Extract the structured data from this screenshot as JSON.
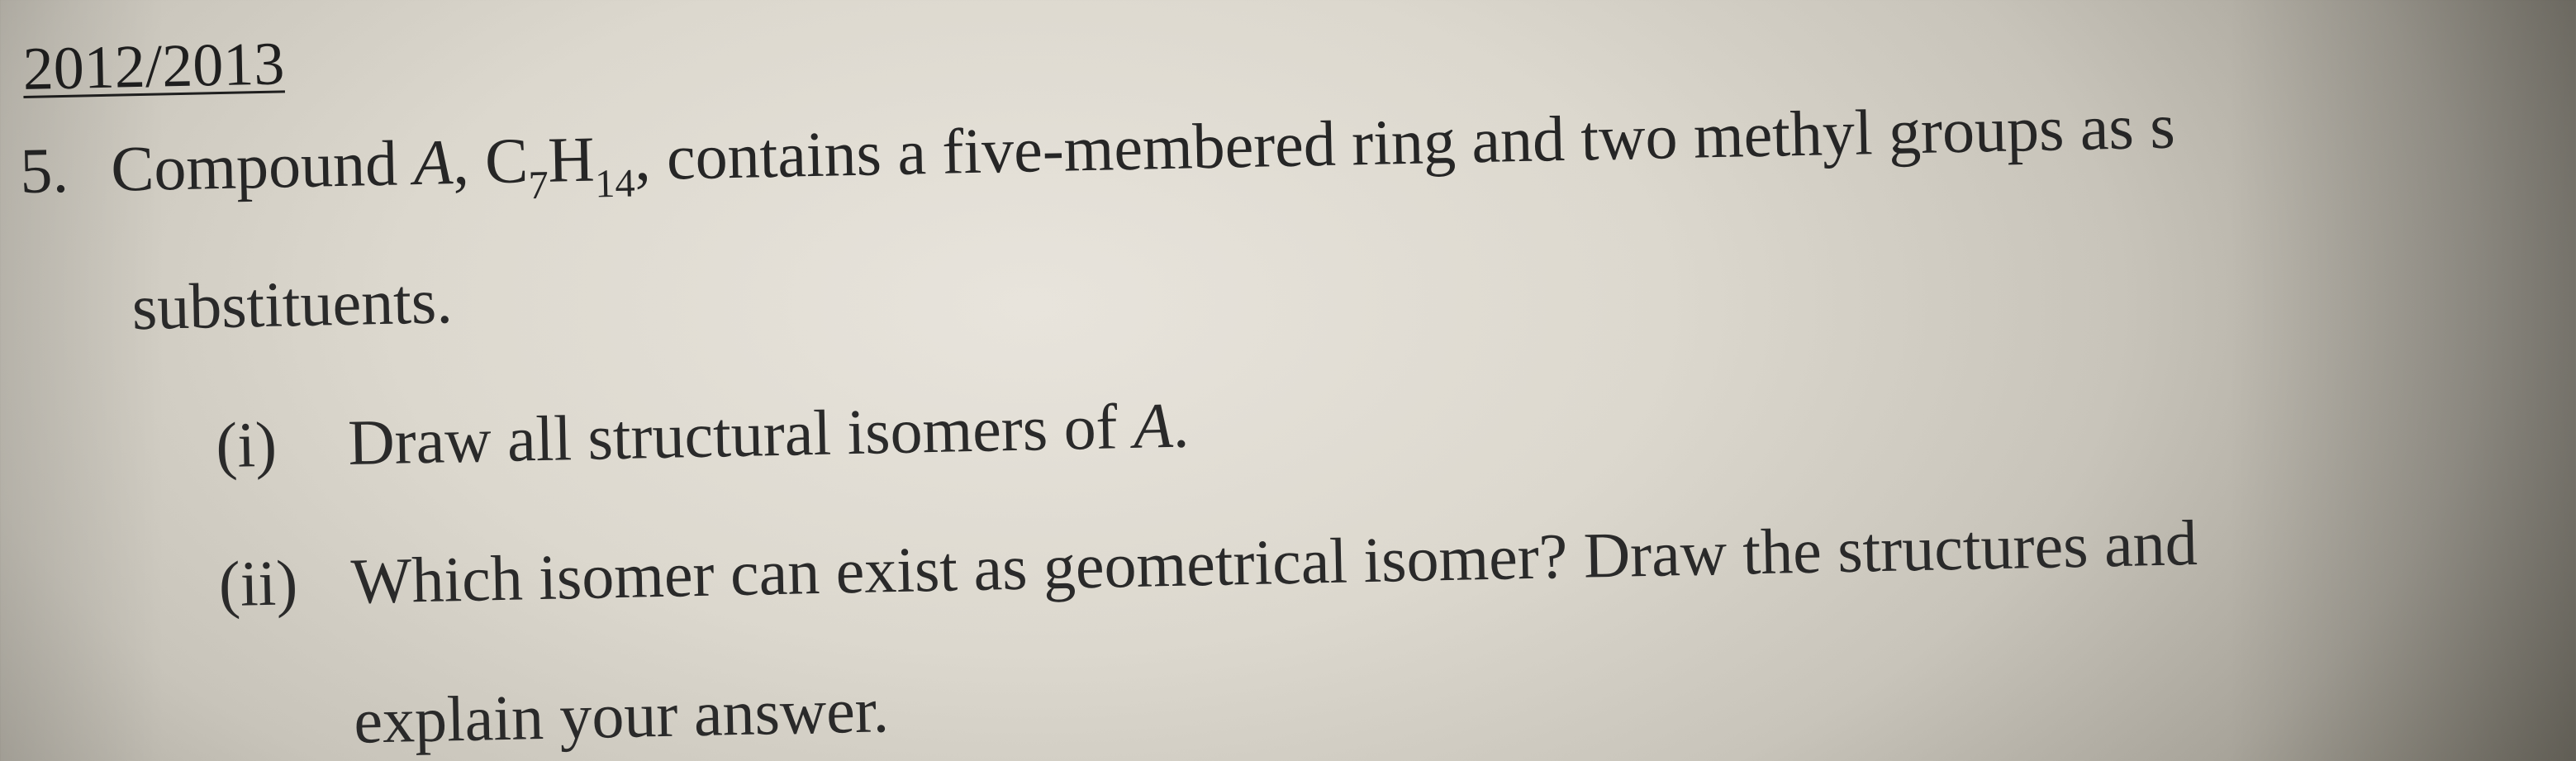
{
  "doc": {
    "background": {
      "paper_color_center": "#e8e4dc",
      "paper_color_edge": "#787468",
      "text_color": "#2a2a2a"
    },
    "year_heading": "2012/2013",
    "question": {
      "number": "5.",
      "compound_label": "A",
      "formula": {
        "C": 7,
        "H": 14,
        "text_prefix": "C",
        "text_mid": "H"
      },
      "line1_before_label": "Compound ",
      "line1_after_label_before_formula": ", ",
      "line1_after_formula": ", contains a five-membered ring and two methyl groups as s",
      "line2": "substituents.",
      "parts": [
        {
          "roman": "(i)",
          "text_before_A": "Draw all structural isomers of ",
          "A": "A",
          "text_after_A": "."
        },
        {
          "roman": "(ii)",
          "line1": "Which isomer can exist as geometrical isomer? Draw the structures and",
          "line2": "explain your answer."
        }
      ]
    },
    "typography": {
      "font_family": "Times New Roman",
      "heading_fontsize_pt": 56,
      "body_fontsize_pt": 58,
      "line_height": 1.6
    }
  }
}
